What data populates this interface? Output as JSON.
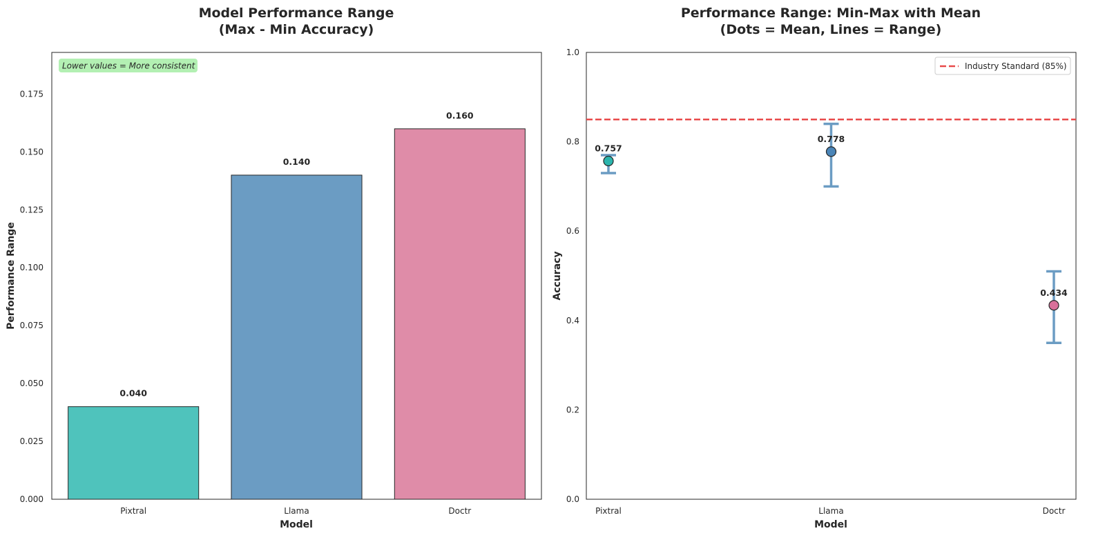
{
  "chart_data": [
    {
      "type": "bar",
      "title": "Model Performance Range\n(Max - Min Accuracy)",
      "xlabel": "Model",
      "ylabel": "Performance Range",
      "categories": [
        "Pixtral",
        "Llama",
        "Doctr"
      ],
      "values": [
        0.04,
        0.14,
        0.16
      ],
      "value_labels": [
        "0.040",
        "0.140",
        "0.160"
      ],
      "colors": [
        "#4fc3bc",
        "#6b9cc3",
        "#df8ca8"
      ],
      "ylim": [
        0,
        0.193
      ],
      "yticks": [
        0.0,
        0.025,
        0.05,
        0.075,
        0.1,
        0.125,
        0.15,
        0.175
      ],
      "ytick_labels": [
        "0.000",
        "0.025",
        "0.050",
        "0.075",
        "0.100",
        "0.125",
        "0.150",
        "0.175"
      ],
      "annotation": {
        "text": "Lower values = More consistent",
        "color": "#b3f0b3"
      },
      "grid": false
    },
    {
      "type": "scatter",
      "title": "Performance Range: Min-Max with Mean\n(Dots = Mean, Lines = Range)",
      "xlabel": "Model",
      "ylabel": "Accuracy",
      "categories": [
        "Pixtral",
        "Llama",
        "Doctr"
      ],
      "mean": [
        0.757,
        0.778,
        0.434
      ],
      "min": [
        0.73,
        0.7,
        0.35
      ],
      "max": [
        0.77,
        0.84,
        0.51
      ],
      "value_labels": [
        "0.757",
        "0.778",
        "0.434"
      ],
      "colors": [
        "#2bb5ad",
        "#4a85b8",
        "#d9709a"
      ],
      "errorbar_color": "#6b9cc3",
      "ylim": [
        0,
        1.0
      ],
      "yticks": [
        0.0,
        0.2,
        0.4,
        0.6,
        0.8,
        1.0
      ],
      "ytick_labels": [
        "0.0",
        "0.2",
        "0.4",
        "0.6",
        "0.8",
        "1.0"
      ],
      "reference_line": {
        "value": 0.85,
        "label": "Industry Standard (85%)",
        "color": "#e84a4a"
      },
      "legend_position": "top-right",
      "grid": false
    }
  ]
}
